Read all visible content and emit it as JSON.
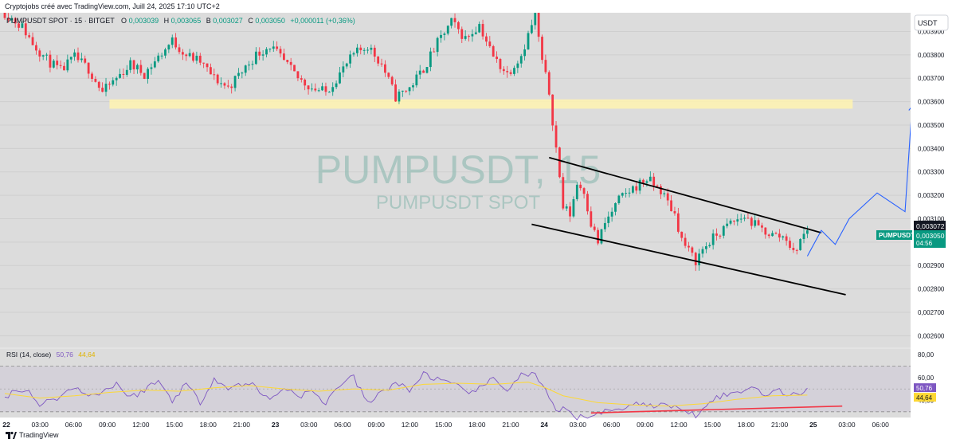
{
  "header": {
    "credit": "Cryptojobs créé avec TradingView.com, Juill 24, 2025 17:10 UTC+2"
  },
  "legend": {
    "symbol": "PUMPUSDT SPOT · 15 · BITGET",
    "o_label": "O",
    "o_value": "0,003039",
    "h_label": "H",
    "h_value": "0,003065",
    "b_label": "B",
    "b_value": "0,003027",
    "c_label": "C",
    "c_value": "0,003050",
    "change": "+0,000011 (+0,36%)"
  },
  "watermark": {
    "line1": "PUMPUSDT, 15",
    "line2": "PUMPUSDT SPOT"
  },
  "currency_button": "USDT",
  "price_tags": {
    "symbol": "PUMPUSDT",
    "price": "0,003050",
    "countdown": "04:56",
    "upper": "0,003072"
  },
  "rsi": {
    "label": "RSI (14, close)",
    "value": "50,76",
    "ma_value": "44,64",
    "levels": [
      "80,00",
      "60,00",
      "40,00"
    ],
    "line_color": "#7e57c2",
    "ma_color": "#fdd835"
  },
  "footer": {
    "brand": "TradingView"
  },
  "colors": {
    "up": "#089981",
    "down": "#f23645",
    "zone": "#fff3b0",
    "projection": "#2962ff",
    "trendline": "#000000",
    "rsi_trendline": "#f23645"
  },
  "chart_data": {
    "type": "candlestick",
    "title": "PUMPUSDT SPOT · 15 · BITGET",
    "interval": "15",
    "currency": "USDT",
    "ylim": [
      0.00255,
      0.00398
    ],
    "y_ticks": [
      "0,002600",
      "0,002700",
      "0,002800",
      "0,002900",
      "0,003000",
      "0,003100",
      "0,003200",
      "0,003300",
      "0,003400",
      "0,003500",
      "0,003600",
      "0,003700",
      "0,003800",
      "0,003900"
    ],
    "x_ticks": [
      "22",
      "03:00",
      "06:00",
      "09:00",
      "12:00",
      "15:00",
      "18:00",
      "21:00",
      "23",
      "03:00",
      "06:00",
      "09:00",
      "12:00",
      "15:00",
      "18:00",
      "21:00",
      "24",
      "03:00",
      "06:00",
      "09:00",
      "12:00",
      "15:00",
      "18:00",
      "21:00",
      "25",
      "03:00",
      "06:00"
    ],
    "price_path": [
      [
        0,
        0.00398
      ],
      [
        5,
        0.00392
      ],
      [
        8,
        0.00385
      ],
      [
        12,
        0.00378
      ],
      [
        16,
        0.00373
      ],
      [
        20,
        0.00379
      ],
      [
        24,
        0.00374
      ],
      [
        28,
        0.00364
      ],
      [
        32,
        0.0037
      ],
      [
        36,
        0.00376
      ],
      [
        40,
        0.00372
      ],
      [
        44,
        0.00379
      ],
      [
        48,
        0.00386
      ],
      [
        52,
        0.0038
      ],
      [
        56,
        0.00377
      ],
      [
        60,
        0.0037
      ],
      [
        64,
        0.00366
      ],
      [
        68,
        0.00373
      ],
      [
        72,
        0.0038
      ],
      [
        76,
        0.00384
      ],
      [
        80,
        0.00377
      ],
      [
        84,
        0.0037
      ],
      [
        88,
        0.00366
      ],
      [
        92,
        0.00364
      ],
      [
        96,
        0.00372
      ],
      [
        100,
        0.0038
      ],
      [
        104,
        0.00384
      ],
      [
        108,
        0.00376
      ],
      [
        112,
        0.00362
      ],
      [
        116,
        0.00366
      ],
      [
        120,
        0.00374
      ],
      [
        124,
        0.00385
      ],
      [
        128,
        0.00394
      ],
      [
        132,
        0.00387
      ],
      [
        136,
        0.00393
      ],
      [
        140,
        0.00379
      ],
      [
        144,
        0.00372
      ],
      [
        148,
        0.0038
      ],
      [
        152,
        0.00397
      ],
      [
        154,
        0.00377
      ],
      [
        156,
        0.00364
      ],
      [
        158,
        0.0034
      ],
      [
        160,
        0.00315
      ],
      [
        162,
        0.00312
      ],
      [
        164,
        0.00325
      ],
      [
        166,
        0.00322
      ],
      [
        168,
        0.00308
      ],
      [
        170,
        0.003
      ],
      [
        172,
        0.00308
      ],
      [
        176,
        0.00318
      ],
      [
        180,
        0.00323
      ],
      [
        184,
        0.00327
      ],
      [
        188,
        0.00322
      ],
      [
        192,
        0.00312
      ],
      [
        194,
        0.00301
      ],
      [
        196,
        0.00296
      ],
      [
        198,
        0.00292
      ],
      [
        200,
        0.00297
      ],
      [
        204,
        0.00303
      ],
      [
        208,
        0.00308
      ],
      [
        212,
        0.00311
      ],
      [
        216,
        0.00306
      ],
      [
        220,
        0.00303
      ],
      [
        224,
        0.00302
      ],
      [
        226,
        0.00295
      ],
      [
        228,
        0.00301
      ],
      [
        230,
        0.00305
      ]
    ],
    "demand_zone": {
      "from": 0.00357,
      "to": 0.00361
    },
    "descending_channel": {
      "upper": [
        [
          156,
          0.003361
        ],
        [
          234,
          0.00304
        ]
      ],
      "lower": [
        [
          151,
          0.003076
        ],
        [
          241,
          0.002775
        ]
      ]
    },
    "projection_path": [
      [
        230,
        0.00294
      ],
      [
        234,
        0.00305
      ],
      [
        238,
        0.00299
      ],
      [
        242,
        0.0031
      ],
      [
        250,
        0.00321
      ],
      [
        258,
        0.00313
      ],
      [
        260,
        0.00358
      ]
    ],
    "rsi_path": [
      [
        0,
        44
      ],
      [
        6,
        51
      ],
      [
        10,
        36
      ],
      [
        14,
        41
      ],
      [
        20,
        51
      ],
      [
        26,
        44
      ],
      [
        32,
        55
      ],
      [
        36,
        42
      ],
      [
        44,
        57
      ],
      [
        48,
        40
      ],
      [
        52,
        55
      ],
      [
        56,
        38
      ],
      [
        60,
        60
      ],
      [
        64,
        50
      ],
      [
        70,
        56
      ],
      [
        76,
        40
      ],
      [
        80,
        52
      ],
      [
        84,
        44
      ],
      [
        88,
        47
      ],
      [
        92,
        38
      ],
      [
        96,
        54
      ],
      [
        100,
        60
      ],
      [
        104,
        37
      ],
      [
        108,
        47
      ],
      [
        112,
        56
      ],
      [
        116,
        48
      ],
      [
        120,
        64
      ],
      [
        124,
        58
      ],
      [
        128,
        54
      ],
      [
        132,
        48
      ],
      [
        136,
        50
      ],
      [
        140,
        58
      ],
      [
        144,
        50
      ],
      [
        148,
        62
      ],
      [
        152,
        63
      ],
      [
        156,
        42
      ],
      [
        158,
        28
      ],
      [
        160,
        33
      ],
      [
        164,
        24
      ],
      [
        170,
        29
      ],
      [
        176,
        32
      ],
      [
        180,
        38
      ],
      [
        184,
        35
      ],
      [
        188,
        37
      ],
      [
        192,
        33
      ],
      [
        196,
        31
      ],
      [
        198,
        27
      ],
      [
        202,
        41
      ],
      [
        206,
        44
      ],
      [
        210,
        47
      ],
      [
        214,
        52
      ],
      [
        218,
        46
      ],
      [
        222,
        48
      ],
      [
        226,
        44
      ],
      [
        230,
        50.76
      ]
    ],
    "rsi_ma_path": [
      [
        0,
        46
      ],
      [
        10,
        42
      ],
      [
        20,
        44
      ],
      [
        30,
        47
      ],
      [
        40,
        49
      ],
      [
        50,
        48
      ],
      [
        60,
        51
      ],
      [
        70,
        53
      ],
      [
        80,
        50
      ],
      [
        90,
        48
      ],
      [
        100,
        50
      ],
      [
        110,
        49
      ],
      [
        120,
        54
      ],
      [
        130,
        55
      ],
      [
        140,
        54
      ],
      [
        150,
        56
      ],
      [
        155,
        51
      ],
      [
        160,
        44
      ],
      [
        170,
        38
      ],
      [
        180,
        36
      ],
      [
        190,
        35
      ],
      [
        200,
        37
      ],
      [
        210,
        41
      ],
      [
        220,
        44
      ],
      [
        230,
        44.64
      ]
    ],
    "rsi_trendline": [
      [
        168,
        29
      ],
      [
        240,
        35
      ]
    ]
  }
}
